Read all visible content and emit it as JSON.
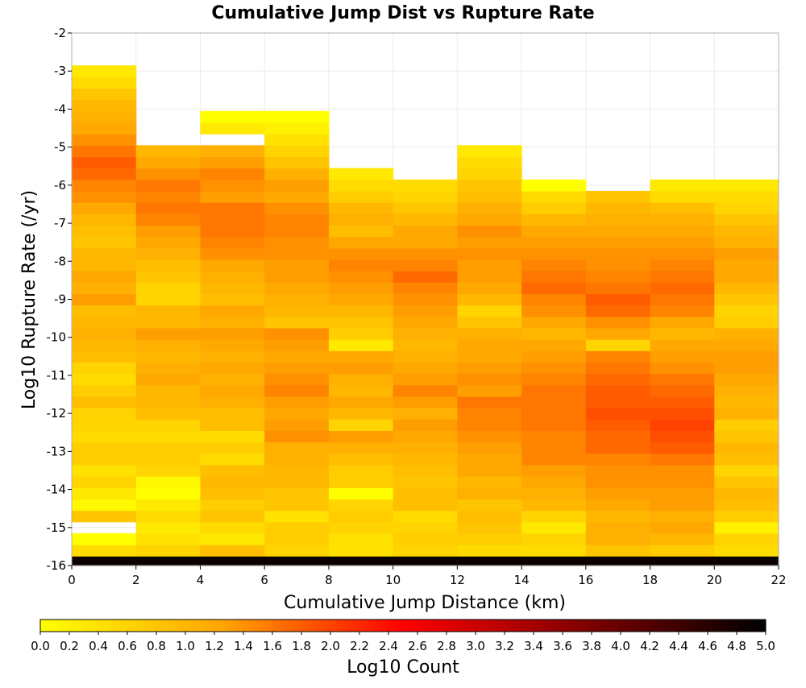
{
  "chart_data": {
    "type": "heatmap",
    "title": "Cumulative Jump Dist vs Rupture Rate",
    "xlabel": "Cumulative Jump Distance (km)",
    "ylabel": "Log10 Rupture Rate (/yr)",
    "xlim": [
      0,
      22
    ],
    "ylim": [
      -16,
      -2
    ],
    "x_ticks": [
      "0",
      "2",
      "4",
      "6",
      "8",
      "10",
      "12",
      "14",
      "16",
      "18",
      "20",
      "22"
    ],
    "y_ticks": [
      "-2",
      "-3",
      "-4",
      "-5",
      "-6",
      "-7",
      "-8",
      "-9",
      "-10",
      "-11",
      "-12",
      "-13",
      "-14",
      "-15",
      "-16"
    ],
    "x_bin_edges": [
      0,
      2,
      4,
      6,
      8,
      10,
      12,
      14,
      16,
      18,
      20,
      22
    ],
    "y_bin_size": 0.3,
    "y_bin_start": -16.05,
    "y_bin_count": 44,
    "grid": true,
    "colorbar": {
      "label": "Log10 Count",
      "min": 0,
      "max": 5,
      "orientation": "horizontal",
      "tick_labels": [
        "0.0",
        "0.2",
        "0.4",
        "0.6",
        "0.8",
        "1.0",
        "1.2",
        "1.4",
        "1.6",
        "1.8",
        "2.0",
        "2.2",
        "2.4",
        "2.6",
        "2.8",
        "3.0",
        "3.2",
        "3.4",
        "3.6",
        "3.8",
        "4.0",
        "4.2",
        "4.4",
        "4.6",
        "4.8",
        "5.0"
      ],
      "colors": [
        "#ffff00",
        "#ffa500",
        "#ff0000",
        "#800000",
        "#000000"
      ]
    },
    "columns": [
      {
        "x_range": [
          0,
          2
        ],
        "log10_count_by_bin": [
          4.9,
          0.5,
          0.0,
          null,
          0.8,
          0.1,
          0.3,
          0.6,
          0.4,
          0.7,
          0.7,
          0.5,
          0.6,
          0.6,
          0.9,
          0.7,
          0.5,
          0.6,
          0.9,
          1.0,
          1.1,
          1.0,
          0.9,
          1.3,
          1.1,
          1.2,
          1.0,
          1.0,
          0.8,
          0.9,
          1.0,
          1.2,
          1.4,
          1.5,
          1.7,
          1.8,
          1.6,
          1.4,
          1.2,
          1.1,
          1.0,
          0.8,
          0.5,
          0.3
        ]
      },
      {
        "x_range": [
          2,
          4
        ],
        "log10_count_by_bin": [
          4.9,
          0.6,
          0.4,
          0.3,
          0.5,
          0.3,
          0.0,
          0.1,
          0.6,
          0.7,
          0.7,
          0.5,
          0.6,
          0.9,
          1.0,
          1.0,
          1.2,
          1.1,
          1.0,
          1.1,
          1.3,
          1.0,
          1.0,
          0.6,
          0.6,
          0.8,
          0.9,
          1.1,
          1.2,
          1.3,
          1.5,
          1.6,
          1.5,
          1.6,
          1.4,
          1.2,
          1.0
        ]
      },
      {
        "x_range": [
          4,
          6
        ],
        "log10_count_by_bin": [
          4.9,
          0.9,
          0.3,
          0.5,
          0.8,
          0.7,
          0.9,
          1.0,
          0.9,
          0.5,
          0.7,
          0.5,
          0.9,
          0.9,
          1.1,
          1.2,
          1.1,
          1.2,
          1.1,
          1.2,
          1.3,
          1.1,
          1.2,
          0.9,
          1.0,
          1.1,
          1.2,
          1.4,
          1.5,
          1.6,
          1.6,
          1.6,
          1.3,
          1.4,
          1.5,
          1.3,
          1.1,
          null,
          0.3,
          0.0
        ]
      },
      {
        "x_range": [
          6,
          8
        ],
        "log10_count_by_bin": [
          4.9,
          0.6,
          0.7,
          0.7,
          0.4,
          0.8,
          0.8,
          1.0,
          1.0,
          1.1,
          1.1,
          1.4,
          1.3,
          1.2,
          1.3,
          1.5,
          1.4,
          1.3,
          1.2,
          1.3,
          1.4,
          0.8,
          1.0,
          1.1,
          1.2,
          1.3,
          1.3,
          1.4,
          1.4,
          1.5,
          1.5,
          1.4,
          1.2,
          1.3,
          1.1,
          0.8,
          0.6,
          0.4,
          0.2,
          0.0
        ]
      },
      {
        "x_range": [
          8,
          10
        ],
        "log10_count_by_bin": [
          4.9,
          0.4,
          0.4,
          0.6,
          0.7,
          0.6,
          0.0,
          0.7,
          0.7,
          0.9,
          1.1,
          1.3,
          0.6,
          1.0,
          1.2,
          1.0,
          1.1,
          1.3,
          1.2,
          0.3,
          0.7,
          0.8,
          1.0,
          1.2,
          1.3,
          1.4,
          1.5,
          1.4,
          1.2,
          0.9,
          1.1,
          1.0,
          0.7,
          0.5,
          0.3
        ]
      },
      {
        "x_range": [
          10,
          12
        ],
        "log10_count_by_bin": [
          4.9,
          0.6,
          0.7,
          0.6,
          0.5,
          0.9,
          0.9,
          0.8,
          0.9,
          1.0,
          1.1,
          1.2,
          1.3,
          1.1,
          1.3,
          1.5,
          1.3,
          1.2,
          1.1,
          1.0,
          1.1,
          1.2,
          1.3,
          1.4,
          1.5,
          1.7,
          1.5,
          1.4,
          1.2,
          1.2,
          1.0,
          0.8,
          0.6,
          0.5
        ]
      },
      {
        "x_range": [
          12,
          14
        ],
        "log10_count_by_bin": [
          4.9,
          0.5,
          0.7,
          0.8,
          0.9,
          0.8,
          1.1,
          1.0,
          1.2,
          1.2,
          1.3,
          1.4,
          1.5,
          1.5,
          1.6,
          1.3,
          1.4,
          1.3,
          1.2,
          1.2,
          1.1,
          0.8,
          0.6,
          1.0,
          1.2,
          1.3,
          1.3,
          1.4,
          1.3,
          1.4,
          1.2,
          1.1,
          0.9,
          0.8,
          0.6,
          0.5,
          0.3
        ]
      },
      {
        "x_range": [
          14,
          16
        ],
        "log10_count_by_bin": [
          4.9,
          0.5,
          0.6,
          0.3,
          0.6,
          1.0,
          1.1,
          1.2,
          1.3,
          1.5,
          1.5,
          1.5,
          1.6,
          1.6,
          1.6,
          1.6,
          1.5,
          1.4,
          1.3,
          1.2,
          1.0,
          1.2,
          1.4,
          1.5,
          1.7,
          1.6,
          1.5,
          1.4,
          1.3,
          1.2,
          1.0,
          0.7,
          0.5,
          0.0
        ]
      },
      {
        "x_range": [
          16,
          18
        ],
        "log10_count_by_bin": [
          4.9,
          0.8,
          1.1,
          1.1,
          1.0,
          1.2,
          1.3,
          1.4,
          1.4,
          1.5,
          1.7,
          1.7,
          1.8,
          1.9,
          1.8,
          1.8,
          1.7,
          1.6,
          1.5,
          0.6,
          1.2,
          1.4,
          1.7,
          1.8,
          1.6,
          1.5,
          1.4,
          1.4,
          1.3,
          1.2,
          1.1,
          1.0,
          0.8
        ]
      },
      {
        "x_range": [
          18,
          20
        ],
        "log10_count_by_bin": [
          4.9,
          0.7,
          1.0,
          1.2,
          1.1,
          1.3,
          1.3,
          1.4,
          1.4,
          1.6,
          1.8,
          1.9,
          2.0,
          1.9,
          1.8,
          1.7,
          1.6,
          1.4,
          1.3,
          1.2,
          1.0,
          1.2,
          1.5,
          1.6,
          1.7,
          1.6,
          1.5,
          1.4,
          1.3,
          1.2,
          1.1,
          0.9,
          0.5,
          0.3
        ]
      },
      {
        "x_range": [
          20,
          22
        ],
        "log10_count_by_bin": [
          4.9,
          0.5,
          0.6,
          0.2,
          0.7,
          0.9,
          1.0,
          0.8,
          0.6,
          0.9,
          1.0,
          0.8,
          0.7,
          1.1,
          1.0,
          1.1,
          1.2,
          1.3,
          1.3,
          1.2,
          1.1,
          0.7,
          0.6,
          0.8,
          1.0,
          1.2,
          1.2,
          1.3,
          1.1,
          1.0,
          0.8,
          0.6,
          0.5,
          0.3
        ]
      }
    ]
  }
}
